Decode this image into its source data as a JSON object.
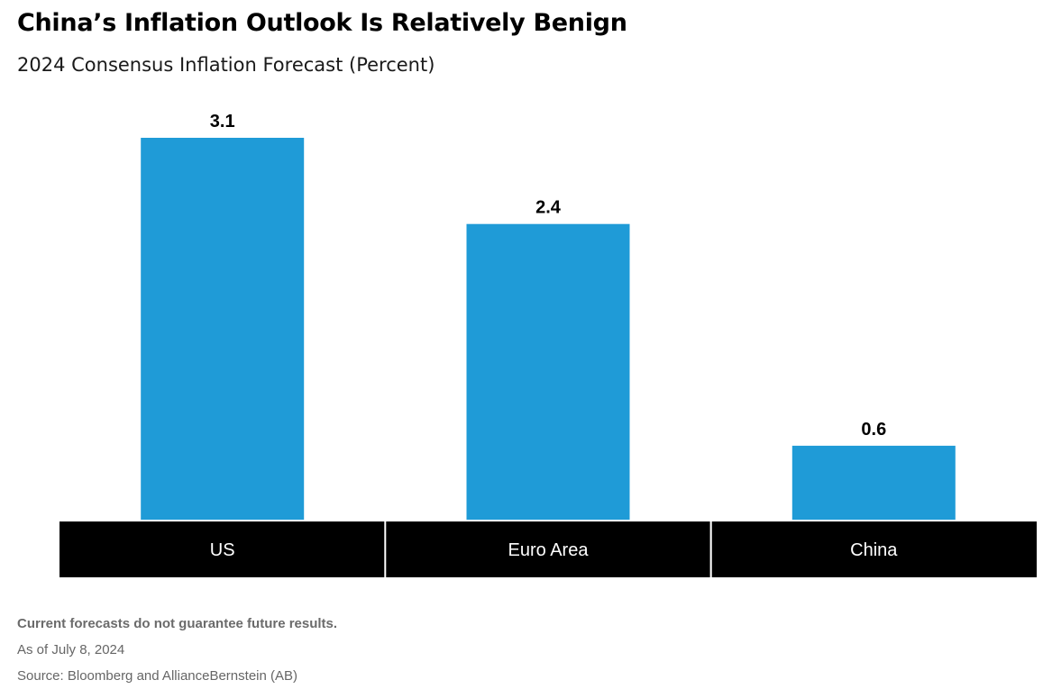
{
  "title": "China’s Inflation Outlook Is Relatively Benign",
  "subtitle": "2024 Consensus Inflation Forecast (Percent)",
  "colors": {
    "bar": "#1f9bd7",
    "category_band": "#000000",
    "category_text": "#ffffff",
    "value_label": "#000000"
  },
  "chart_data": {
    "type": "bar",
    "categories": [
      "US",
      "Euro Area",
      "China"
    ],
    "values": [
      3.1,
      2.4,
      0.6
    ],
    "data_labels": [
      "3.1",
      "2.4",
      "0.6"
    ],
    "title": "China’s Inflation Outlook Is Relatively Benign",
    "subtitle": "2024 Consensus Inflation Forecast (Percent)",
    "xlabel": "",
    "ylabel": "",
    "ylim": [
      0,
      3.1
    ],
    "grid": false,
    "legend": "none"
  },
  "footnotes": {
    "disclaimer": "Current forecasts do not guarantee future results.",
    "as_of": "As of July 8, 2024",
    "source": "Source: Bloomberg and AllianceBernstein (AB)"
  }
}
